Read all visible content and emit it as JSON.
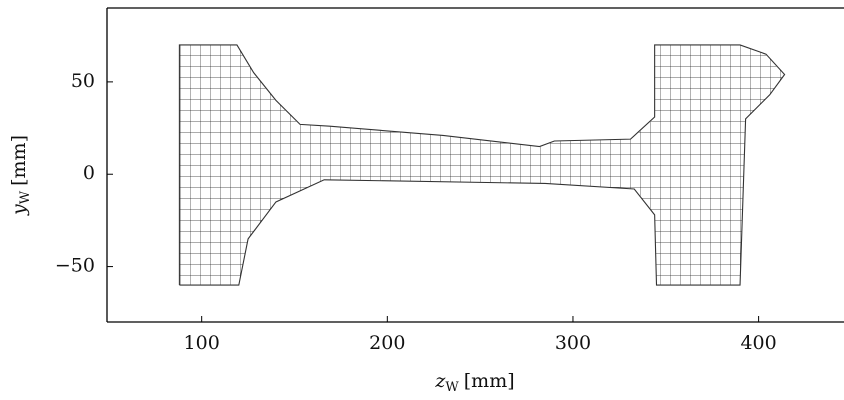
{
  "chart_data": {
    "type": "line",
    "xlabel": {
      "symbol": "z",
      "subscript": "W",
      "unit": "[mm]"
    },
    "ylabel": {
      "symbol": "y",
      "subscript": "W",
      "unit": "[mm]"
    },
    "x": [
      88,
      88,
      119,
      128,
      140,
      153,
      169,
      230,
      282,
      290,
      331,
      344,
      344,
      390,
      404,
      414,
      406,
      393,
      390,
      345,
      344,
      333,
      285,
      166,
      140,
      125,
      120,
      88
    ],
    "y": [
      -60,
      70,
      70,
      55,
      40,
      27,
      26,
      21,
      15,
      18,
      19,
      31,
      70,
      70,
      65,
      54,
      43,
      30,
      -60,
      -60,
      -22,
      -8,
      -5,
      -3,
      -15,
      -35,
      -60,
      -60
    ],
    "color": "#333333",
    "xlim": [
      49,
      446
    ],
    "ylim": [
      -80,
      90
    ],
    "xticks": [
      100,
      200,
      300,
      400
    ],
    "yticks": [
      {
        "value": -50,
        "label": "−50"
      },
      0,
      50
    ]
  }
}
